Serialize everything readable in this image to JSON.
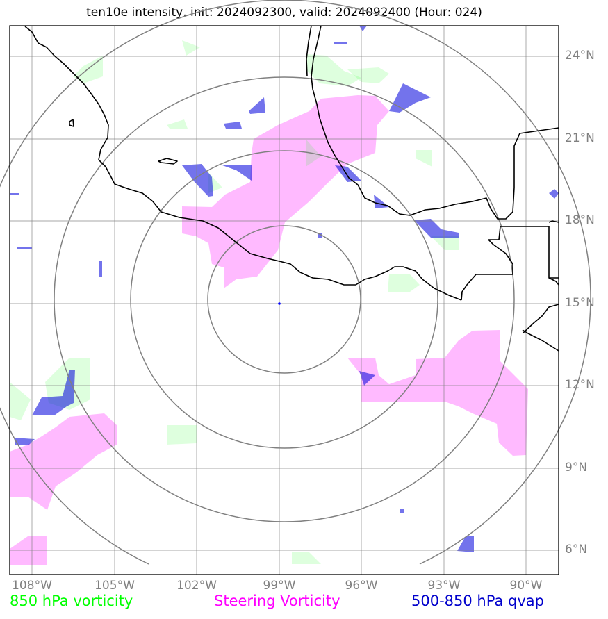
{
  "title": "ten10e intensity, init: 2024092300, valid: 2024092400 (Hour: 024)",
  "map": {
    "lat_range": [
      5.2,
      25.2
    ],
    "lon_range": [
      -108.8,
      -88.8
    ],
    "lat_ticks": [
      "24°N",
      "21°N",
      "18°N",
      "15°N",
      "12°N",
      "9°N",
      "6°N"
    ],
    "lon_ticks": [
      "108°W",
      "105°W",
      "102°W",
      "99°W",
      "96°W",
      "93°W",
      "90°W"
    ],
    "storm_center": {
      "lon": -98.85,
      "lat": 15.2
    },
    "range_rings": [
      "ring-1",
      "ring-2",
      "ring-3",
      "ring-4"
    ]
  },
  "colors": {
    "vort850": "#00ff00",
    "steering": "#ff00ff",
    "qvap": "#0000cc",
    "grid": "#808080",
    "coast": "#000000"
  },
  "legend": {
    "vort850": "850 hPa vorticity",
    "steering": "Steering Vorticity",
    "qvap": "500-850 hPa qvap"
  }
}
